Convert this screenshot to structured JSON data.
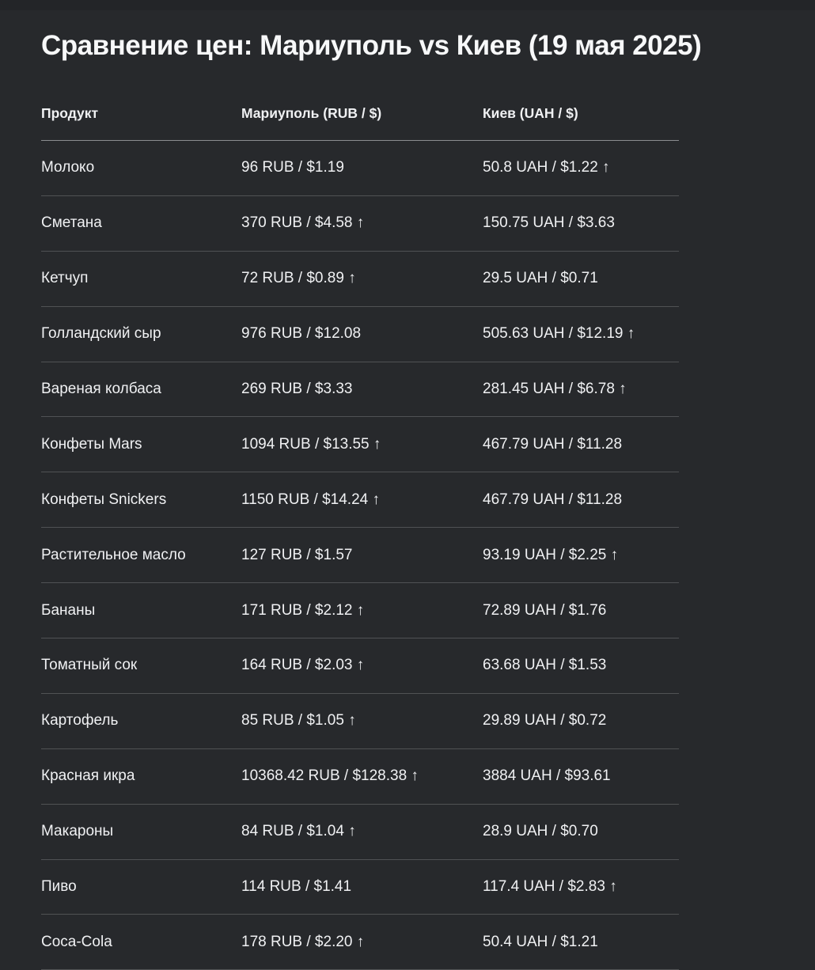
{
  "page": {
    "title": "Сравнение цен: Мариуполь vs Киев (19 мая 2025)"
  },
  "colors": {
    "background": "#27292c",
    "background_top_strip": "#232528",
    "title_text": "#f7f8f9",
    "body_text": "#f0f1f3",
    "header_divider": "#8b8d90",
    "row_divider": "#505254"
  },
  "table": {
    "columns": {
      "product": "Продукт",
      "mariupol": "Мариуполь (RUB / $)",
      "kyiv": "Киев (UAH / $)"
    },
    "higher_price_marker": "↑",
    "rows": [
      {
        "product": "Молоко",
        "mariupol": "96 RUB / $1.19",
        "kyiv": "50.8 UAH / $1.22 ↑"
      },
      {
        "product": "Сметана",
        "mariupol": "370 RUB / $4.58 ↑",
        "kyiv": "150.75 UAH / $3.63"
      },
      {
        "product": "Кетчуп",
        "mariupol": "72 RUB / $0.89 ↑",
        "kyiv": "29.5 UAH / $0.71"
      },
      {
        "product": "Голландский сыр",
        "mariupol": "976 RUB / $12.08",
        "kyiv": "505.63 UAH / $12.19 ↑"
      },
      {
        "product": "Вареная колбаса",
        "mariupol": "269 RUB / $3.33",
        "kyiv": "281.45 UAH / $6.78 ↑"
      },
      {
        "product": "Конфеты Mars",
        "mariupol": "1094 RUB / $13.55 ↑",
        "kyiv": "467.79 UAH / $11.28"
      },
      {
        "product": "Конфеты Snickers",
        "mariupol": "1150 RUB / $14.24 ↑",
        "kyiv": "467.79 UAH / $11.28"
      },
      {
        "product": "Растительное масло",
        "mariupol": "127 RUB / $1.57",
        "kyiv": "93.19 UAH / $2.25 ↑"
      },
      {
        "product": "Бананы",
        "mariupol": "171 RUB / $2.12 ↑",
        "kyiv": "72.89 UAH / $1.76"
      },
      {
        "product": "Томатный сок",
        "mariupol": "164 RUB / $2.03 ↑",
        "kyiv": "63.68 UAH / $1.53"
      },
      {
        "product": "Картофель",
        "mariupol": "85 RUB / $1.05 ↑",
        "kyiv": "29.89 UAH / $0.72"
      },
      {
        "product": "Красная икра",
        "mariupol": "10368.42 RUB / $128.38 ↑",
        "kyiv": "3884 UAH / $93.61"
      },
      {
        "product": "Макароны",
        "mariupol": "84 RUB / $1.04 ↑",
        "kyiv": "28.9 UAH / $0.70"
      },
      {
        "product": "Пиво",
        "mariupol": "114 RUB / $1.41",
        "kyiv": "117.4 UAH / $2.83 ↑"
      },
      {
        "product": "Coca-Cola",
        "mariupol": "178 RUB / $2.20 ↑",
        "kyiv": "50.4 UAH / $1.21"
      }
    ]
  }
}
